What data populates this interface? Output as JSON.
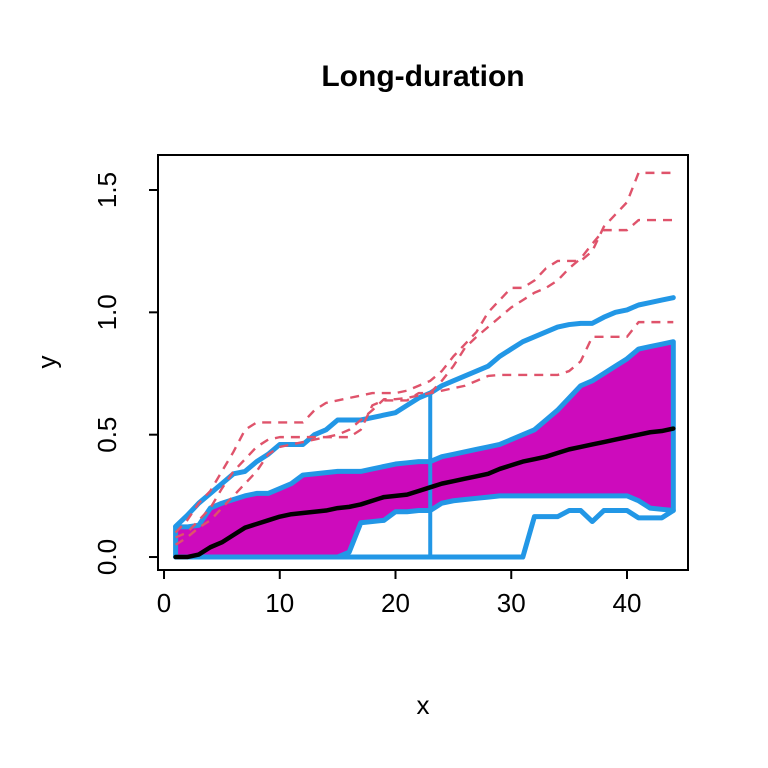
{
  "chart_data": {
    "type": "line",
    "title": "Long-duration",
    "xlabel": "x",
    "ylabel": "y",
    "x_ticks": [
      0,
      10,
      20,
      30,
      40
    ],
    "x_tick_labels": [
      "0",
      "10",
      "20",
      "30",
      "40"
    ],
    "y_ticks": [
      0,
      0.5,
      1.0,
      1.5
    ],
    "y_tick_labels": [
      "0.0",
      "0.5",
      "1.0",
      "1.5"
    ],
    "x_range": [
      -0.52,
      45.27
    ],
    "y_range": [
      -0.053,
      1.643
    ],
    "grid": "off",
    "legend": "none",
    "x": [
      1,
      2,
      3,
      4,
      5,
      6,
      7,
      8,
      9,
      10,
      11,
      12,
      13,
      14,
      15,
      16,
      17,
      18,
      19,
      20,
      21,
      22,
      23,
      24,
      25,
      26,
      27,
      28,
      29,
      30,
      31,
      32,
      33,
      34,
      35,
      36,
      37,
      38,
      39,
      40,
      41,
      42,
      43,
      44
    ],
    "series": {
      "median": [
        0.0,
        0.0,
        0.01,
        0.04,
        0.06,
        0.09,
        0.12,
        0.135,
        0.15,
        0.165,
        0.175,
        0.18,
        0.185,
        0.19,
        0.2,
        0.205,
        0.215,
        0.23,
        0.245,
        0.25,
        0.255,
        0.27,
        0.285,
        0.3,
        0.31,
        0.32,
        0.33,
        0.34,
        0.36,
        0.375,
        0.39,
        0.4,
        0.41,
        0.425,
        0.44,
        0.45,
        0.46,
        0.47,
        0.48,
        0.49,
        0.5,
        0.51,
        0.515,
        0.525
      ],
      "central_region_upper": [
        0.123,
        0.123,
        0.13,
        0.2,
        0.22,
        0.235,
        0.25,
        0.26,
        0.26,
        0.28,
        0.3,
        0.335,
        0.34,
        0.345,
        0.35,
        0.35,
        0.35,
        0.36,
        0.37,
        0.38,
        0.385,
        0.39,
        0.39,
        0.41,
        0.42,
        0.43,
        0.44,
        0.45,
        0.46,
        0.48,
        0.5,
        0.52,
        0.56,
        0.6,
        0.65,
        0.7,
        0.72,
        0.75,
        0.78,
        0.81,
        0.85,
        0.86,
        0.87,
        0.88
      ],
      "central_region_lower": [
        0,
        0,
        0,
        0,
        0,
        0,
        0,
        0,
        0,
        0,
        0,
        0,
        0,
        0,
        0,
        0.02,
        0.14,
        0.145,
        0.15,
        0.185,
        0.185,
        0.19,
        0.19,
        0.22,
        0.23,
        0.235,
        0.24,
        0.245,
        0.25,
        0.25,
        0.25,
        0.25,
        0.25,
        0.25,
        0.25,
        0.25,
        0.25,
        0.25,
        0.25,
        0.25,
        0.23,
        0.2,
        0.195,
        0.19
      ],
      "upper_envelope": [
        0.125,
        0.17,
        0.22,
        0.26,
        0.3,
        0.34,
        0.35,
        0.39,
        0.42,
        0.46,
        0.46,
        0.46,
        0.5,
        0.52,
        0.56,
        0.56,
        0.56,
        0.57,
        0.58,
        0.59,
        0.62,
        0.65,
        0.67,
        0.7,
        0.72,
        0.74,
        0.76,
        0.78,
        0.82,
        0.85,
        0.88,
        0.9,
        0.92,
        0.94,
        0.95,
        0.955,
        0.955,
        0.98,
        1.0,
        1.01,
        1.03,
        1.04,
        1.05,
        1.06
      ],
      "lower_envelope": [
        0,
        0,
        0,
        0,
        0,
        0,
        0,
        0,
        0,
        0,
        0,
        0,
        0,
        0,
        0,
        0,
        0,
        0,
        0,
        0,
        0,
        0,
        0,
        0,
        0,
        0,
        0,
        0,
        0,
        0,
        0,
        0.165,
        0.165,
        0.165,
        0.19,
        0.19,
        0.145,
        0.19,
        0.19,
        0.19,
        0.16,
        0.16,
        0.16,
        0.19
      ],
      "outliers": [
        {
          "name": "outlier-curve-1",
          "values": [
            0.1,
            0.15,
            0.22,
            0.27,
            0.35,
            0.43,
            0.52,
            0.55,
            0.55,
            0.55,
            0.55,
            0.55,
            0.6,
            0.63,
            0.64,
            0.65,
            0.66,
            0.67,
            0.67,
            0.67,
            0.68,
            0.7,
            0.72,
            0.76,
            0.82,
            0.87,
            0.92,
            1.0,
            1.05,
            1.1,
            1.1,
            1.13,
            1.18,
            1.21,
            1.21,
            1.21,
            1.25,
            1.35,
            1.4,
            1.45,
            1.57,
            1.57,
            1.57,
            1.57
          ]
        },
        {
          "name": "outlier-curve-2",
          "values": [
            0.08,
            0.1,
            0.15,
            0.2,
            0.28,
            0.35,
            0.4,
            0.45,
            0.48,
            0.49,
            0.49,
            0.49,
            0.49,
            0.49,
            0.49,
            0.49,
            0.52,
            0.62,
            0.64,
            0.64,
            0.64,
            0.67,
            0.67,
            0.72,
            0.78,
            0.855,
            0.9,
            0.94,
            0.98,
            1.02,
            1.05,
            1.08,
            1.1,
            1.13,
            1.18,
            1.22,
            1.28,
            1.336,
            1.336,
            1.336,
            1.377,
            1.377,
            1.377,
            1.377
          ]
        },
        {
          "name": "outlier-curve-3",
          "values": [
            0.05,
            0.08,
            0.12,
            0.15,
            0.2,
            0.25,
            0.3,
            0.35,
            0.42,
            0.45,
            0.46,
            0.47,
            0.48,
            0.49,
            0.5,
            0.52,
            0.56,
            0.6,
            0.645,
            0.645,
            0.65,
            0.66,
            0.67,
            0.68,
            0.69,
            0.7,
            0.72,
            0.74,
            0.744,
            0.744,
            0.744,
            0.744,
            0.744,
            0.744,
            0.76,
            0.8,
            0.9,
            0.9,
            0.9,
            0.9,
            0.96,
            0.96,
            0.96,
            0.96
          ]
        }
      ]
    },
    "whisker": {
      "x": 23,
      "from": 0,
      "to": 0.67
    },
    "colors": {
      "central_region_fill": "#CD0BBC",
      "envelope": "#2297E6",
      "median": "#000000",
      "outlier": "#DF536B",
      "axis": "#000000",
      "background": "#FFFFFF"
    }
  }
}
